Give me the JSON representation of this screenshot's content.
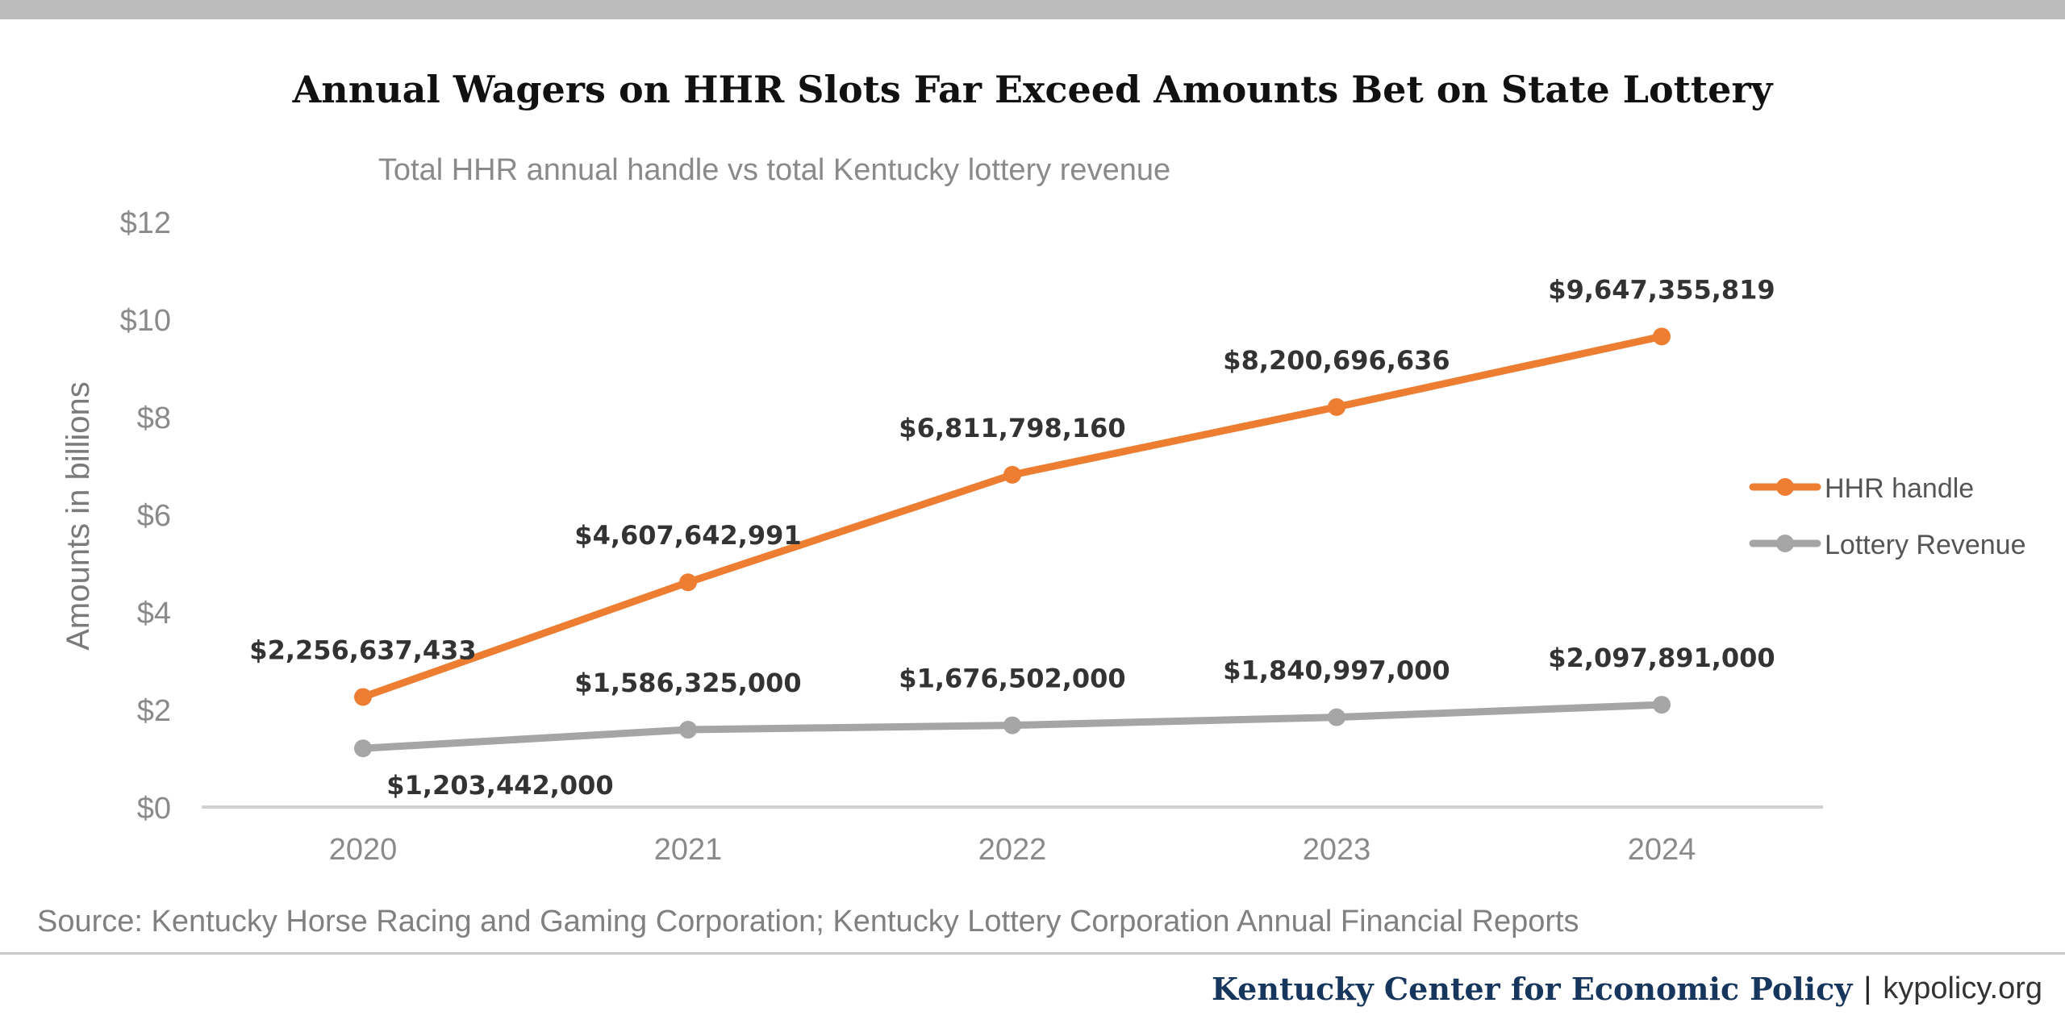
{
  "chart_data": {
    "type": "line",
    "title": "Annual Wagers on HHR Slots Far Exceed Amounts Bet on State Lottery",
    "subtitle": "Total HHR annual handle vs total Kentucky lottery revenue",
    "ylabel": "Amounts in billions",
    "xlabel": "",
    "ylim": [
      0,
      12
    ],
    "yticks": [
      0,
      2,
      4,
      6,
      8,
      10,
      12
    ],
    "ytick_labels": [
      "$0",
      "$2",
      "$4",
      "$6",
      "$8",
      "$10",
      "$12"
    ],
    "categories": [
      "2020",
      "2021",
      "2022",
      "2023",
      "2024"
    ],
    "grid": false,
    "legend_position": "right",
    "series": [
      {
        "name": "HHR handle",
        "color": "#ed7d31",
        "values": [
          2.256637433,
          4.607642991,
          6.81179816,
          8.200696636,
          9.647355819
        ],
        "labels": [
          "$2,256,637,433",
          "$4,607,642,991",
          "$6,811,798,160",
          "$8,200,696,636",
          "$9,647,355,819"
        ]
      },
      {
        "name": "Lottery Revenue",
        "color": "#a5a5a5",
        "values": [
          1.203442,
          1.586325,
          1.676502,
          1.840997,
          2.097891
        ],
        "labels": [
          "$1,203,442,000",
          "$1,586,325,000",
          "$1,676,502,000",
          "$1,840,997,000",
          "$2,097,891,000"
        ]
      }
    ]
  },
  "source": "Source: Kentucky Horse Racing and Gaming Corporation; Kentucky Lottery Corporation Annual Financial Reports",
  "footer": {
    "org": "Kentucky Center for Economic Policy",
    "separator": "|",
    "site": "kypolicy.org"
  },
  "colors": {
    "axis_text": "#8a8a8a",
    "data_label": "#333333",
    "axis_line": "#d0d0d0"
  }
}
